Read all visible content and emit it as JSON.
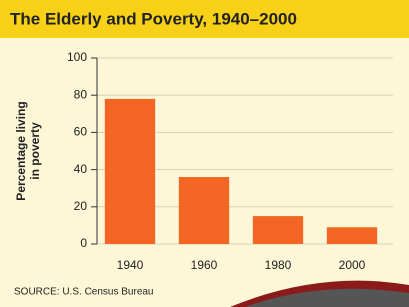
{
  "chart_data": {
    "type": "bar",
    "title": "The Elderly and Poverty, 1940–2000",
    "ylabel": [
      "Percentage living",
      "in poverty"
    ],
    "categories": [
      "1940",
      "1960",
      "1980",
      "2000"
    ],
    "values": [
      78,
      36,
      15,
      9
    ],
    "color": "#f26522",
    "ylim": [
      0,
      100
    ],
    "yticks": [
      0,
      20,
      40,
      60,
      80,
      100
    ],
    "grid": true,
    "source": "SOURCE: U.S. Census Bureau"
  }
}
